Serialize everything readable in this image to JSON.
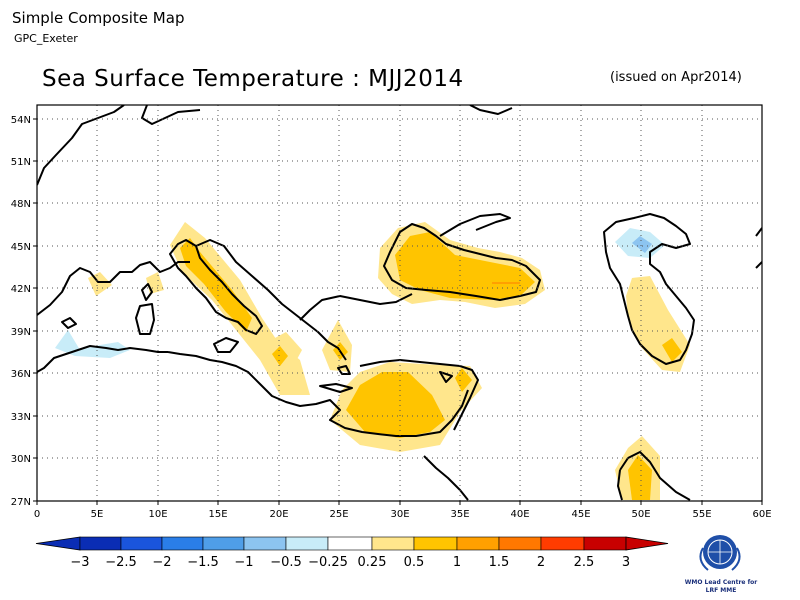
{
  "header": {
    "title": "Simple Composite Map",
    "subtitle": "GPC_Exeter"
  },
  "map": {
    "title": "Sea Surface Temperature : MJJ2014",
    "issued": "(issued on Apr2014)",
    "lat_labels": [
      "54N",
      "51N",
      "48N",
      "45N",
      "42N",
      "39N",
      "36N",
      "33N",
      "30N",
      "27N"
    ],
    "lon_labels": [
      "0",
      "5E",
      "10E",
      "15E",
      "20E",
      "25E",
      "30E",
      "35E",
      "40E",
      "45E",
      "50E",
      "55E",
      "60E"
    ]
  },
  "colorbar": {
    "labels": [
      "−3",
      "−2.5",
      "−2",
      "−1.5",
      "−1",
      "−0.5",
      "−0.25",
      "0.25",
      "0.5",
      "1",
      "1.5",
      "2",
      "2.5",
      "3"
    ],
    "colors": [
      "#0a2db4",
      "#1a55dc",
      "#2a7ee8",
      "#4f9ee8",
      "#8cc4f0",
      "#c8ecf8",
      "#ffffff",
      "#ffe68c",
      "#ffc400",
      "#ffa000",
      "#ff7800",
      "#ff3c00",
      "#c80000"
    ]
  },
  "logo": {
    "line1": "WMO Lead Centre for",
    "line2": "LRF MME"
  }
}
